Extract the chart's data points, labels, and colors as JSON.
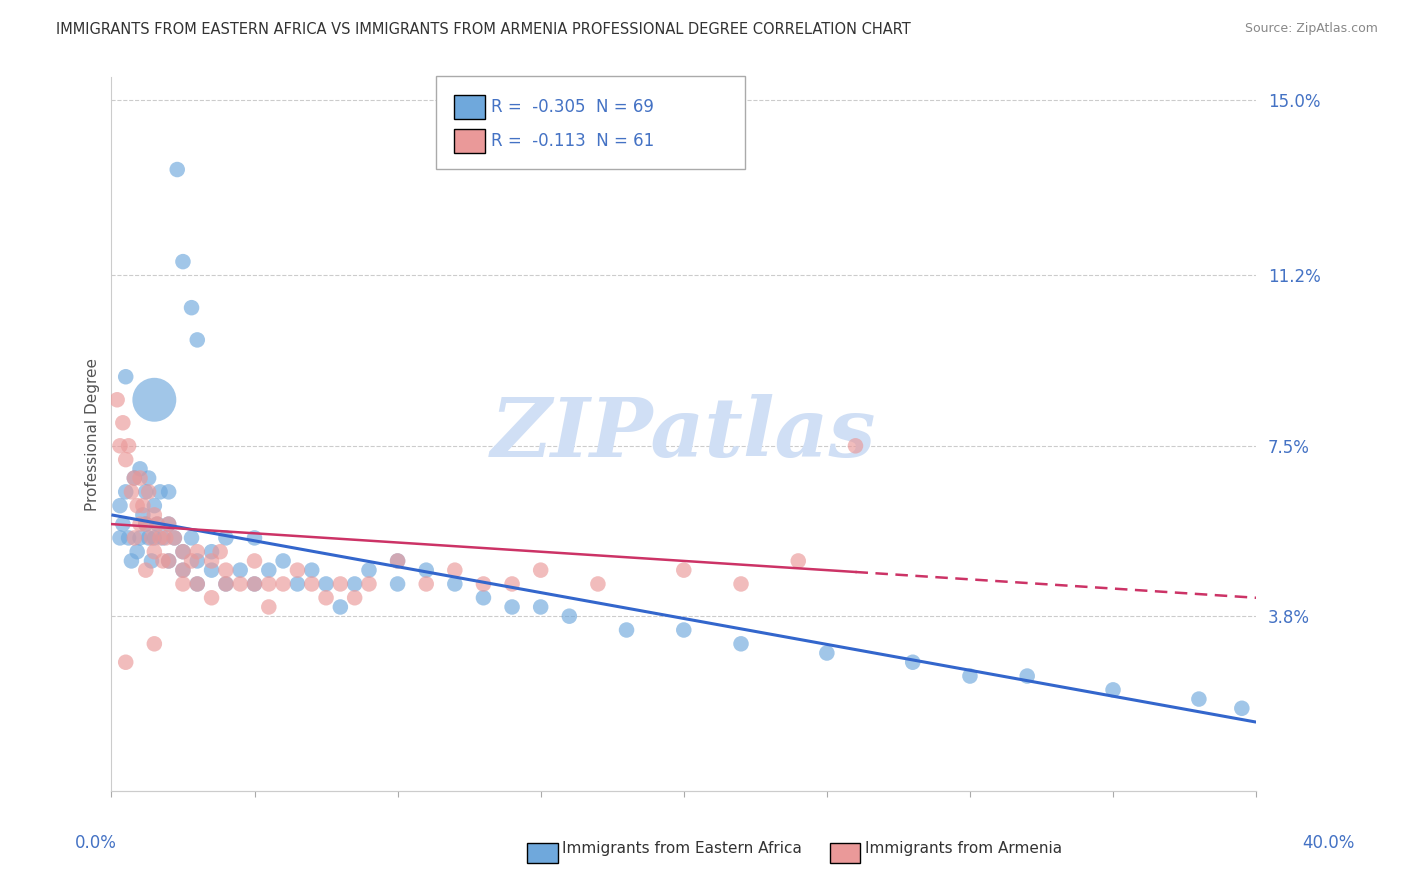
{
  "title": "IMMIGRANTS FROM EASTERN AFRICA VS IMMIGRANTS FROM ARMENIA PROFESSIONAL DEGREE CORRELATION CHART",
  "source": "Source: ZipAtlas.com",
  "ylabel": "Professional Degree",
  "xlim": [
    0.0,
    40.0
  ],
  "ylim": [
    0.0,
    15.5
  ],
  "ytick_vals": [
    3.8,
    7.5,
    11.2,
    15.0
  ],
  "ytick_labels": [
    "3.8%",
    "7.5%",
    "11.2%",
    "15.0%"
  ],
  "blue_R": -0.305,
  "blue_N": 69,
  "pink_R": -0.113,
  "pink_N": 61,
  "blue_color": "#6fa8dc",
  "pink_color": "#ea9999",
  "blue_line_color": "#3366cc",
  "pink_line_color": "#cc3366",
  "watermark_color": "#d0dff5",
  "grid_color": "#cccccc",
  "title_color": "#333333",
  "axis_label_color": "#4472c4",
  "blue_points": [
    [
      0.3,
      6.2
    ],
    [
      0.4,
      5.8
    ],
    [
      0.5,
      6.5
    ],
    [
      0.6,
      5.5
    ],
    [
      0.7,
      5.0
    ],
    [
      0.8,
      6.8
    ],
    [
      0.9,
      5.2
    ],
    [
      1.0,
      7.0
    ],
    [
      1.0,
      5.5
    ],
    [
      1.1,
      6.0
    ],
    [
      1.2,
      5.8
    ],
    [
      1.2,
      6.5
    ],
    [
      1.3,
      5.5
    ],
    [
      1.3,
      6.8
    ],
    [
      1.4,
      5.0
    ],
    [
      1.5,
      6.2
    ],
    [
      1.5,
      5.5
    ],
    [
      1.6,
      5.8
    ],
    [
      1.7,
      6.5
    ],
    [
      1.8,
      5.5
    ],
    [
      2.0,
      5.8
    ],
    [
      2.0,
      6.5
    ],
    [
      2.0,
      5.0
    ],
    [
      2.2,
      5.5
    ],
    [
      2.5,
      4.8
    ],
    [
      2.5,
      5.2
    ],
    [
      2.8,
      5.5
    ],
    [
      3.0,
      5.0
    ],
    [
      3.0,
      4.5
    ],
    [
      3.5,
      5.2
    ],
    [
      3.5,
      4.8
    ],
    [
      4.0,
      5.5
    ],
    [
      4.0,
      4.5
    ],
    [
      4.5,
      4.8
    ],
    [
      5.0,
      5.5
    ],
    [
      5.0,
      4.5
    ],
    [
      5.5,
      4.8
    ],
    [
      6.0,
      5.0
    ],
    [
      6.5,
      4.5
    ],
    [
      7.0,
      4.8
    ],
    [
      7.5,
      4.5
    ],
    [
      8.0,
      4.0
    ],
    [
      8.5,
      4.5
    ],
    [
      9.0,
      4.8
    ],
    [
      10.0,
      4.5
    ],
    [
      10.0,
      5.0
    ],
    [
      11.0,
      4.8
    ],
    [
      12.0,
      4.5
    ],
    [
      13.0,
      4.2
    ],
    [
      14.0,
      4.0
    ],
    [
      15.0,
      4.0
    ],
    [
      16.0,
      3.8
    ],
    [
      18.0,
      3.5
    ],
    [
      20.0,
      3.5
    ],
    [
      22.0,
      3.2
    ],
    [
      25.0,
      3.0
    ],
    [
      28.0,
      2.8
    ],
    [
      30.0,
      2.5
    ],
    [
      32.0,
      2.5
    ],
    [
      35.0,
      2.2
    ],
    [
      38.0,
      2.0
    ],
    [
      39.5,
      1.8
    ],
    [
      2.3,
      13.5
    ],
    [
      2.5,
      11.5
    ],
    [
      2.8,
      10.5
    ],
    [
      3.0,
      9.8
    ],
    [
      0.5,
      9.0
    ],
    [
      1.5,
      8.5
    ],
    [
      0.3,
      5.5
    ]
  ],
  "blue_sizes": [
    25,
    25,
    25,
    25,
    25,
    25,
    25,
    25,
    25,
    25,
    25,
    25,
    25,
    25,
    25,
    25,
    25,
    25,
    25,
    25,
    25,
    25,
    25,
    25,
    25,
    25,
    25,
    25,
    25,
    25,
    25,
    25,
    25,
    25,
    25,
    25,
    25,
    25,
    25,
    25,
    25,
    25,
    25,
    25,
    25,
    25,
    25,
    25,
    25,
    25,
    25,
    25,
    25,
    25,
    25,
    25,
    25,
    25,
    25,
    25,
    25,
    25,
    25,
    25,
    25,
    25,
    25,
    200,
    25
  ],
  "pink_points": [
    [
      0.2,
      8.5
    ],
    [
      0.3,
      7.5
    ],
    [
      0.4,
      8.0
    ],
    [
      0.5,
      7.2
    ],
    [
      0.6,
      7.5
    ],
    [
      0.7,
      6.5
    ],
    [
      0.8,
      6.8
    ],
    [
      0.9,
      6.2
    ],
    [
      1.0,
      6.8
    ],
    [
      1.0,
      5.8
    ],
    [
      1.1,
      6.2
    ],
    [
      1.2,
      5.8
    ],
    [
      1.3,
      6.5
    ],
    [
      1.4,
      5.5
    ],
    [
      1.5,
      6.0
    ],
    [
      1.5,
      5.2
    ],
    [
      1.6,
      5.8
    ],
    [
      1.7,
      5.5
    ],
    [
      1.8,
      5.0
    ],
    [
      1.9,
      5.5
    ],
    [
      2.0,
      5.8
    ],
    [
      2.0,
      5.0
    ],
    [
      2.2,
      5.5
    ],
    [
      2.5,
      5.2
    ],
    [
      2.5,
      4.8
    ],
    [
      2.8,
      5.0
    ],
    [
      3.0,
      5.2
    ],
    [
      3.0,
      4.5
    ],
    [
      3.5,
      5.0
    ],
    [
      3.5,
      4.2
    ],
    [
      4.0,
      4.8
    ],
    [
      4.0,
      4.5
    ],
    [
      4.5,
      4.5
    ],
    [
      5.0,
      5.0
    ],
    [
      5.5,
      4.5
    ],
    [
      5.5,
      4.0
    ],
    [
      6.0,
      4.5
    ],
    [
      6.5,
      4.8
    ],
    [
      7.0,
      4.5
    ],
    [
      7.5,
      4.2
    ],
    [
      8.0,
      4.5
    ],
    [
      8.5,
      4.2
    ],
    [
      9.0,
      4.5
    ],
    [
      10.0,
      5.0
    ],
    [
      11.0,
      4.5
    ],
    [
      12.0,
      4.8
    ],
    [
      13.0,
      4.5
    ],
    [
      14.0,
      4.5
    ],
    [
      15.0,
      4.8
    ],
    [
      17.0,
      4.5
    ],
    [
      20.0,
      4.8
    ],
    [
      22.0,
      4.5
    ],
    [
      24.0,
      5.0
    ],
    [
      26.0,
      7.5
    ],
    [
      0.8,
      5.5
    ],
    [
      1.2,
      4.8
    ],
    [
      2.5,
      4.5
    ],
    [
      3.8,
      5.2
    ],
    [
      5.0,
      4.5
    ],
    [
      0.5,
      2.8
    ],
    [
      1.5,
      3.2
    ]
  ],
  "pink_sizes": [
    25,
    25,
    25,
    25,
    25,
    25,
    25,
    25,
    25,
    25,
    25,
    25,
    25,
    25,
    25,
    25,
    25,
    25,
    25,
    25,
    25,
    25,
    25,
    25,
    25,
    25,
    25,
    25,
    25,
    25,
    25,
    25,
    25,
    25,
    25,
    25,
    25,
    25,
    25,
    25,
    25,
    25,
    25,
    25,
    25,
    25,
    25,
    25,
    25,
    25,
    25,
    25,
    25,
    25,
    25,
    25,
    25,
    25,
    25,
    25,
    25
  ],
  "blue_trend_x0": 0.0,
  "blue_trend_x1": 40.0,
  "blue_trend_y0": 6.0,
  "blue_trend_y1": 1.5,
  "pink_trend_x0": 0.0,
  "pink_trend_x1": 40.0,
  "pink_trend_y0": 5.8,
  "pink_trend_y1": 4.2,
  "pink_trend_dash_from": 26.0
}
